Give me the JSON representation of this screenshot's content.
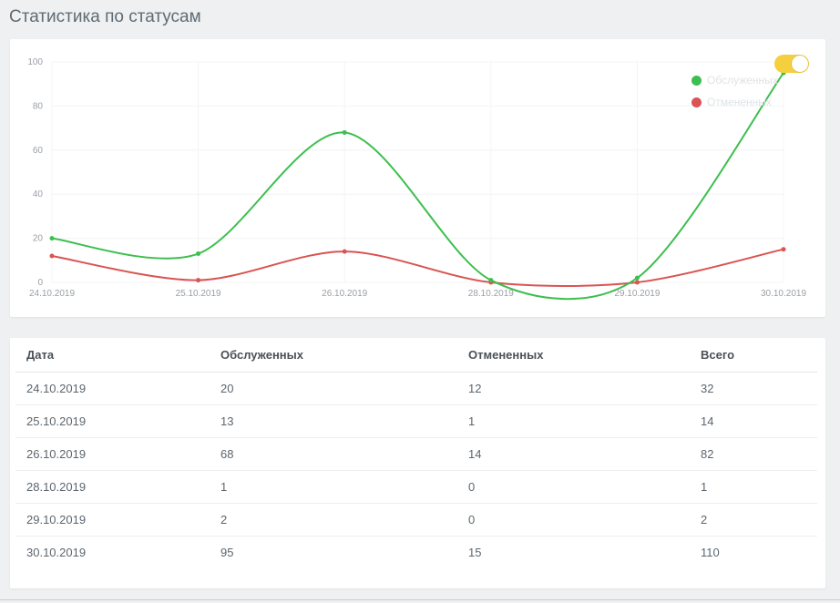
{
  "page": {
    "title": "Статистика по статусам"
  },
  "colors": {
    "served": "#3cbf4e",
    "cancelled": "#d95452",
    "toggle": "#f4d03f"
  },
  "chart_data": {
    "type": "line",
    "categories": [
      "24.10.2019",
      "25.10.2019",
      "26.10.2019",
      "28.10.2019",
      "29.10.2019",
      "30.10.2019"
    ],
    "series": [
      {
        "name": "Обслуженных",
        "values": [
          20,
          13,
          68,
          1,
          2,
          95
        ]
      },
      {
        "name": "Отмененных",
        "values": [
          12,
          1,
          14,
          0,
          0,
          15
        ]
      }
    ],
    "yticks": [
      "0",
      "20",
      "40",
      "60",
      "80",
      "100"
    ],
    "ylim": [
      0,
      100
    ],
    "grid": true,
    "legend": "top-right"
  },
  "table": {
    "headers": [
      "Дата",
      "Обслуженных",
      "Отмененных",
      "Всего"
    ],
    "rows": [
      [
        "24.10.2019",
        "20",
        "12",
        "32"
      ],
      [
        "25.10.2019",
        "13",
        "1",
        "14"
      ],
      [
        "26.10.2019",
        "68",
        "14",
        "82"
      ],
      [
        "28.10.2019",
        "1",
        "0",
        "1"
      ],
      [
        "29.10.2019",
        "2",
        "0",
        "2"
      ],
      [
        "30.10.2019",
        "95",
        "15",
        "110"
      ]
    ]
  }
}
